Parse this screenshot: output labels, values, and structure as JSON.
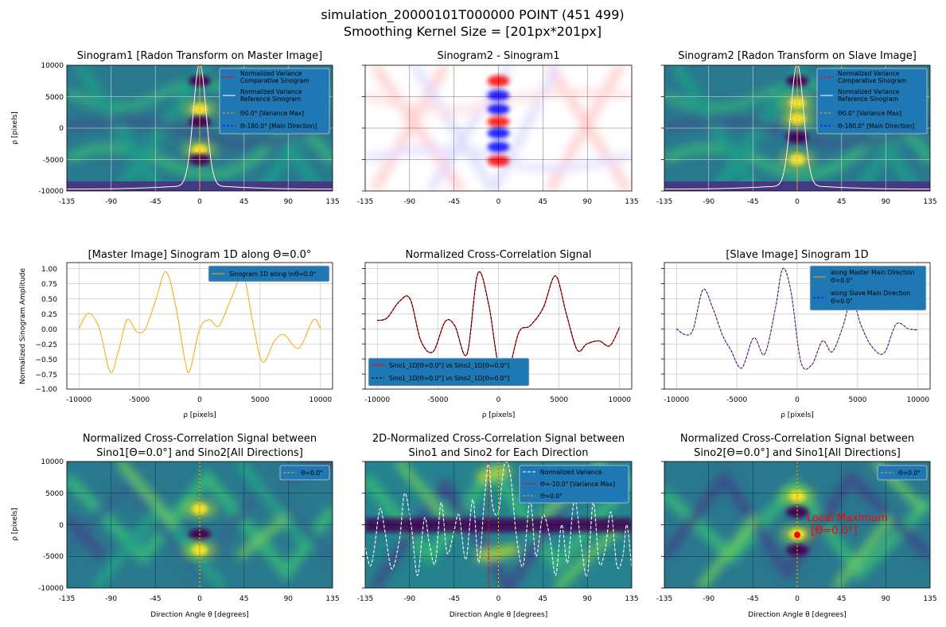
{
  "suptitle": {
    "line1": "simulation_20000101T000000 POINT (451 499)",
    "line2": "Smoothing Kernel Size = [201px*201px]"
  },
  "colors": {
    "viridis_dark": "#440154",
    "viridis_teal": "#21918c",
    "viridis_yellow": "#fde725",
    "legend_bg": "#1f77b4",
    "orange": "#ffa500",
    "red": "#ff0000",
    "blue": "#0000ff",
    "dark_red": "#8b0000"
  },
  "chart_data": [
    {
      "id": "p1",
      "type": "heatmap",
      "title": "Sinogram1 [Radon Transform on Master Image]",
      "xlabel": "",
      "ylabel": "ρ [pixels]",
      "xlim": [
        -135,
        135
      ],
      "ylim": [
        -10000,
        10000
      ],
      "xticks": [
        "-135",
        "-90",
        "-45",
        "0",
        "45",
        "90",
        "135"
      ],
      "yticks": [
        "-10000",
        "-5000",
        "0",
        "5000",
        "10000"
      ],
      "legend": [
        "Normalized Variance",
        " Comparative Sinogram",
        "Normalized Variance",
        " Reference Sinogram",
        "Θ0.0° [Variance Max]",
        "Θ-180.0° [Main Direction]"
      ],
      "blobs": [
        {
          "y": 7500,
          "type": "dark"
        },
        {
          "y": 3000,
          "type": "bright"
        },
        {
          "y": 1000,
          "type": "dark"
        },
        {
          "y": -3500,
          "type": "bright"
        },
        {
          "y": -5000,
          "type": "dark"
        }
      ]
    },
    {
      "id": "p2",
      "type": "heatmap",
      "title": "Sinogram2 - Sinogram1",
      "xlim": [
        -135,
        135
      ],
      "ylim": [
        -10000,
        10000
      ],
      "xticks": [
        "-135",
        "-90",
        "-45",
        "0",
        "45",
        "90",
        "135"
      ],
      "blobs": [
        {
          "y": 7500,
          "type": "red"
        },
        {
          "y": 5200,
          "type": "blue"
        },
        {
          "y": 3000,
          "type": "blue"
        },
        {
          "y": 1000,
          "type": "red"
        },
        {
          "y": -800,
          "type": "blue"
        },
        {
          "y": -3000,
          "type": "blue"
        },
        {
          "y": -5200,
          "type": "red"
        }
      ]
    },
    {
      "id": "p3",
      "type": "heatmap",
      "title": "Sinogram2 [Radon Transform on Slave Image]",
      "xlim": [
        -135,
        135
      ],
      "ylim": [
        -10000,
        10000
      ],
      "xticks": [
        "-135",
        "-90",
        "-45",
        "0",
        "45",
        "90",
        "135"
      ],
      "legend": [
        "Normalized Variance",
        " Comparative Sinogram",
        "Normalized Variance",
        " Reference Sinogram",
        "Θ0.0° [Variance Max]",
        "Θ-180.0° [Main Direction]"
      ],
      "blobs": [
        {
          "y": 7500,
          "type": "dark"
        },
        {
          "y": 4000,
          "type": "bright"
        },
        {
          "y": 1500,
          "type": "bright"
        },
        {
          "y": -1500,
          "type": "dark"
        },
        {
          "y": -5000,
          "type": "bright"
        }
      ]
    },
    {
      "id": "p4",
      "type": "line",
      "title": "[Master Image] Sinogram 1D along Θ=0.0°",
      "xlabel": "ρ [pixels]",
      "ylabel": "Normalized Sinogram Amplitude",
      "xlim": [
        -11000,
        11000
      ],
      "ylim": [
        -1.0,
        1.1
      ],
      "xticks": [
        "-10000",
        "-5000",
        "0",
        "5000",
        "10000"
      ],
      "yticks": [
        "−1.00",
        "−0.75",
        "−0.50",
        "−0.25",
        "0.00",
        "0.25",
        "0.50",
        "0.75",
        "1.00"
      ],
      "legend": [
        "Sinogram 1D along \\nΘ=0.0°"
      ],
      "series": [
        {
          "x": [
            -10000,
            -9200,
            -8300,
            -7400,
            -6700,
            -6000,
            -5200,
            -4500,
            -3600,
            -2800,
            -2000,
            -1200,
            -800,
            0,
            800,
            1600,
            2600,
            3600,
            4400,
            5200,
            6200,
            7000,
            8200,
            9400,
            10000
          ],
          "values": [
            0.0,
            0.26,
            0.0,
            -0.72,
            -0.35,
            0.15,
            -0.05,
            0.0,
            0.5,
            0.95,
            0.4,
            -0.55,
            -0.68,
            0.0,
            0.15,
            0.05,
            0.5,
            0.88,
            0.1,
            -0.55,
            -0.2,
            -0.1,
            -0.32,
            0.15,
            0.0
          ]
        }
      ]
    },
    {
      "id": "p5",
      "type": "line",
      "title": "Normalized Cross-Correlation Signal",
      "xlabel": "ρ [pixels]",
      "xlim": [
        -11000,
        11000
      ],
      "ylim": [
        -1.0,
        1.1
      ],
      "xticks": [
        "-10000",
        "-5000",
        "0",
        "5000",
        "10000"
      ],
      "legend": [
        "Sino1_1D[Θ=0.0°] vs Sino2_1D[Θ=0.0°]",
        "Sino1_1D[Θ=0.0°] vs Sino2_1D[Θ=0.0°]"
      ],
      "series": [
        {
          "x": [
            -10000,
            -9200,
            -8200,
            -7300,
            -6400,
            -5400,
            -4400,
            -3600,
            -2600,
            -1700,
            -800,
            0,
            800,
            1700,
            2600,
            3700,
            4700,
            5600,
            6500,
            7300,
            8300,
            9200,
            10000
          ],
          "values": [
            0.14,
            0.18,
            0.45,
            0.5,
            -0.2,
            -0.38,
            0.12,
            0.05,
            -0.42,
            0.92,
            0.4,
            -0.6,
            -0.7,
            -0.05,
            0.05,
            0.35,
            0.88,
            0.25,
            -0.35,
            -0.25,
            -0.2,
            -0.28,
            0.03
          ]
        }
      ]
    },
    {
      "id": "p6",
      "type": "line",
      "title": "[Slave Image] Sinogram 1D",
      "xlabel": "ρ [pixels]",
      "xlim": [
        -11000,
        11000
      ],
      "ylim": [
        -1.0,
        1.1
      ],
      "xticks": [
        "-10000",
        "-5000",
        "0",
        "5000",
        "10000"
      ],
      "legend": [
        "along Master Main Direction",
        "Θ=0.0°",
        "along Slave Main Direction",
        "Θ=0.0°"
      ],
      "series": [
        {
          "x": [
            -10000,
            -9200,
            -8600,
            -7800,
            -7000,
            -6200,
            -5500,
            -4600,
            -3600,
            -2700,
            -1800,
            -1200,
            -500,
            300,
            1200,
            2100,
            2900,
            3800,
            4500,
            5300,
            6200,
            7200,
            8200,
            9200,
            10000
          ],
          "values": [
            0.0,
            -0.1,
            0.0,
            0.65,
            0.35,
            -0.1,
            -0.35,
            -0.65,
            -0.15,
            -0.42,
            0.35,
            1.0,
            0.6,
            -0.55,
            -0.6,
            -0.2,
            -0.38,
            0.05,
            0.5,
            0.05,
            -0.3,
            -0.4,
            0.08,
            0.0,
            -0.02
          ]
        }
      ]
    },
    {
      "id": "p7",
      "type": "heatmap",
      "title": "Normalized Cross-Correlation Signal between",
      "subtitle": "Sino1[Θ=0.0°] and Sino2[All Directions]",
      "xlabel": "Direction Angle θ [degrees]",
      "ylabel": "ρ [pixels]",
      "xlim": [
        -135,
        135
      ],
      "ylim": [
        -10000,
        10000
      ],
      "xticks": [
        "-135",
        "-90",
        "-45",
        "0",
        "45",
        "90",
        "135"
      ],
      "yticks": [
        "-10000",
        "-5000",
        "0",
        "5000",
        "10000"
      ],
      "legend": [
        "Θ=0.0°"
      ],
      "blobs": [
        {
          "y": 2500,
          "type": "bright"
        },
        {
          "y": -1500,
          "type": "dark"
        },
        {
          "y": -4000,
          "type": "bright"
        }
      ]
    },
    {
      "id": "p8",
      "type": "heatmap",
      "title": "2D-Normalized Cross-Correlation Signal between",
      "subtitle": "Sino1 and Sino2 for Each Direction",
      "xlabel": "Direction Angle θ [degrees]",
      "xlim": [
        -135,
        135
      ],
      "ylim": [
        -10000,
        10000
      ],
      "xticks": [
        "-135",
        "-90",
        "-45",
        "0",
        "45",
        "90",
        "135"
      ],
      "legend": [
        "Normalized Variance",
        "Θ=-10.0° [Variance Max]",
        "Θ=0.0°"
      ],
      "variance_curve": {
        "x": [
          -135,
          -130,
          -126,
          -120,
          -115,
          -108,
          -100,
          -95,
          -88,
          -82,
          -75,
          -70,
          -64,
          -58,
          -52,
          -45,
          -40,
          -33,
          -26,
          -20,
          -14,
          -10,
          -6,
          0,
          6,
          12,
          18,
          25,
          32,
          38,
          45,
          52,
          58,
          64,
          70,
          77,
          84,
          90,
          96,
          102,
          108,
          114,
          120,
          126,
          130,
          135
        ],
        "values": [
          -3500,
          -6500,
          -4000,
          2500,
          -1000,
          -7000,
          -2000,
          5000,
          -500,
          -8000,
          1000,
          -3000,
          -6000,
          3500,
          -4500,
          -1000,
          1500,
          -5500,
          4000,
          -6000,
          4500,
          9500,
          3000,
          2000,
          9500,
          8000,
          -1500,
          -6500,
          4000,
          -5000,
          1500,
          -2000,
          -8000,
          0,
          -6000,
          4000,
          -3500,
          -8000,
          3500,
          -6000,
          -4000,
          2000,
          -6500,
          -5000,
          0,
          -7000
        ]
      },
      "dark_band_y": 0
    },
    {
      "id": "p9",
      "type": "heatmap",
      "title": "Normalized Cross-Correlation Signal between",
      "subtitle": "Sino2[Θ=0.0°] and Sino1[All Directions]",
      "xlabel": "Direction Angle θ [degrees]",
      "xlim": [
        -135,
        135
      ],
      "ylim": [
        -10000,
        10000
      ],
      "xticks": [
        "-135",
        "-90",
        "-45",
        "0",
        "45",
        "90",
        "135"
      ],
      "legend": [
        "Θ=0.0°"
      ],
      "annotation": {
        "text1": "Local Maximum",
        "text2": "[Θ=0.0°]",
        "x": 0,
        "y": -1600
      },
      "blobs": [
        {
          "y": 4500,
          "type": "bright"
        },
        {
          "y": 2000,
          "type": "dark"
        },
        {
          "y": -1500,
          "type": "bright"
        },
        {
          "y": -4000,
          "type": "dark"
        }
      ]
    }
  ]
}
